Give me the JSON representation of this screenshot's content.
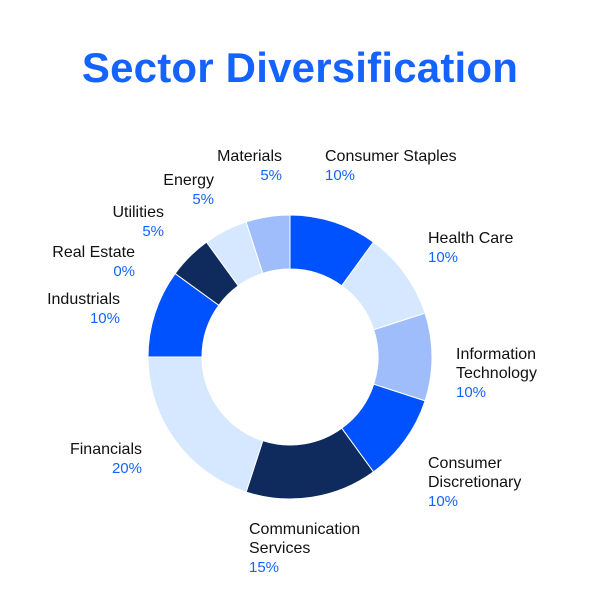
{
  "title": "Sector Diversification",
  "colors": {
    "accent": "#1463FF",
    "bright": "#0052FF",
    "light": "#D6E8FF",
    "medium": "#9EBDFA",
    "navy": "#0F2A5C"
  },
  "labels": [
    {
      "name": "Consumer Staples",
      "pct": "10%"
    },
    {
      "name": "Health Care",
      "pct": "10%"
    },
    {
      "name": "Information\nTechnology",
      "pct": "10%"
    },
    {
      "name": "Consumer\nDiscretionary",
      "pct": "10%"
    },
    {
      "name": "Communication\nServices",
      "pct": "15%"
    },
    {
      "name": "Financials",
      "pct": "20%"
    },
    {
      "name": "Industrials",
      "pct": "10%"
    },
    {
      "name": "Real Estate",
      "pct": "0%"
    },
    {
      "name": "Utilities",
      "pct": "5%"
    },
    {
      "name": "Energy",
      "pct": "5%"
    },
    {
      "name": "Materials",
      "pct": "5%"
    }
  ],
  "chart_data": {
    "type": "pie",
    "subtype": "donut",
    "title": "Sector Diversification",
    "categories": [
      "Consumer Staples",
      "Health Care",
      "Information Technology",
      "Consumer Discretionary",
      "Communication Services",
      "Financials",
      "Industrials",
      "Real Estate",
      "Utilities",
      "Energy",
      "Materials"
    ],
    "values": [
      10,
      10,
      10,
      10,
      15,
      20,
      10,
      0,
      5,
      5,
      5
    ],
    "segment_colors": [
      "#0052FF",
      "#D6E8FF",
      "#9EBDFA",
      "#0052FF",
      "#0F2A5C",
      "#D6E8FF",
      "#0052FF",
      "#0F2A5C",
      "#0F2A5C",
      "#D6E8FF",
      "#9EBDFA"
    ],
    "start_angle": "top, clockwise",
    "legend": "none (labels placed around ring)"
  }
}
